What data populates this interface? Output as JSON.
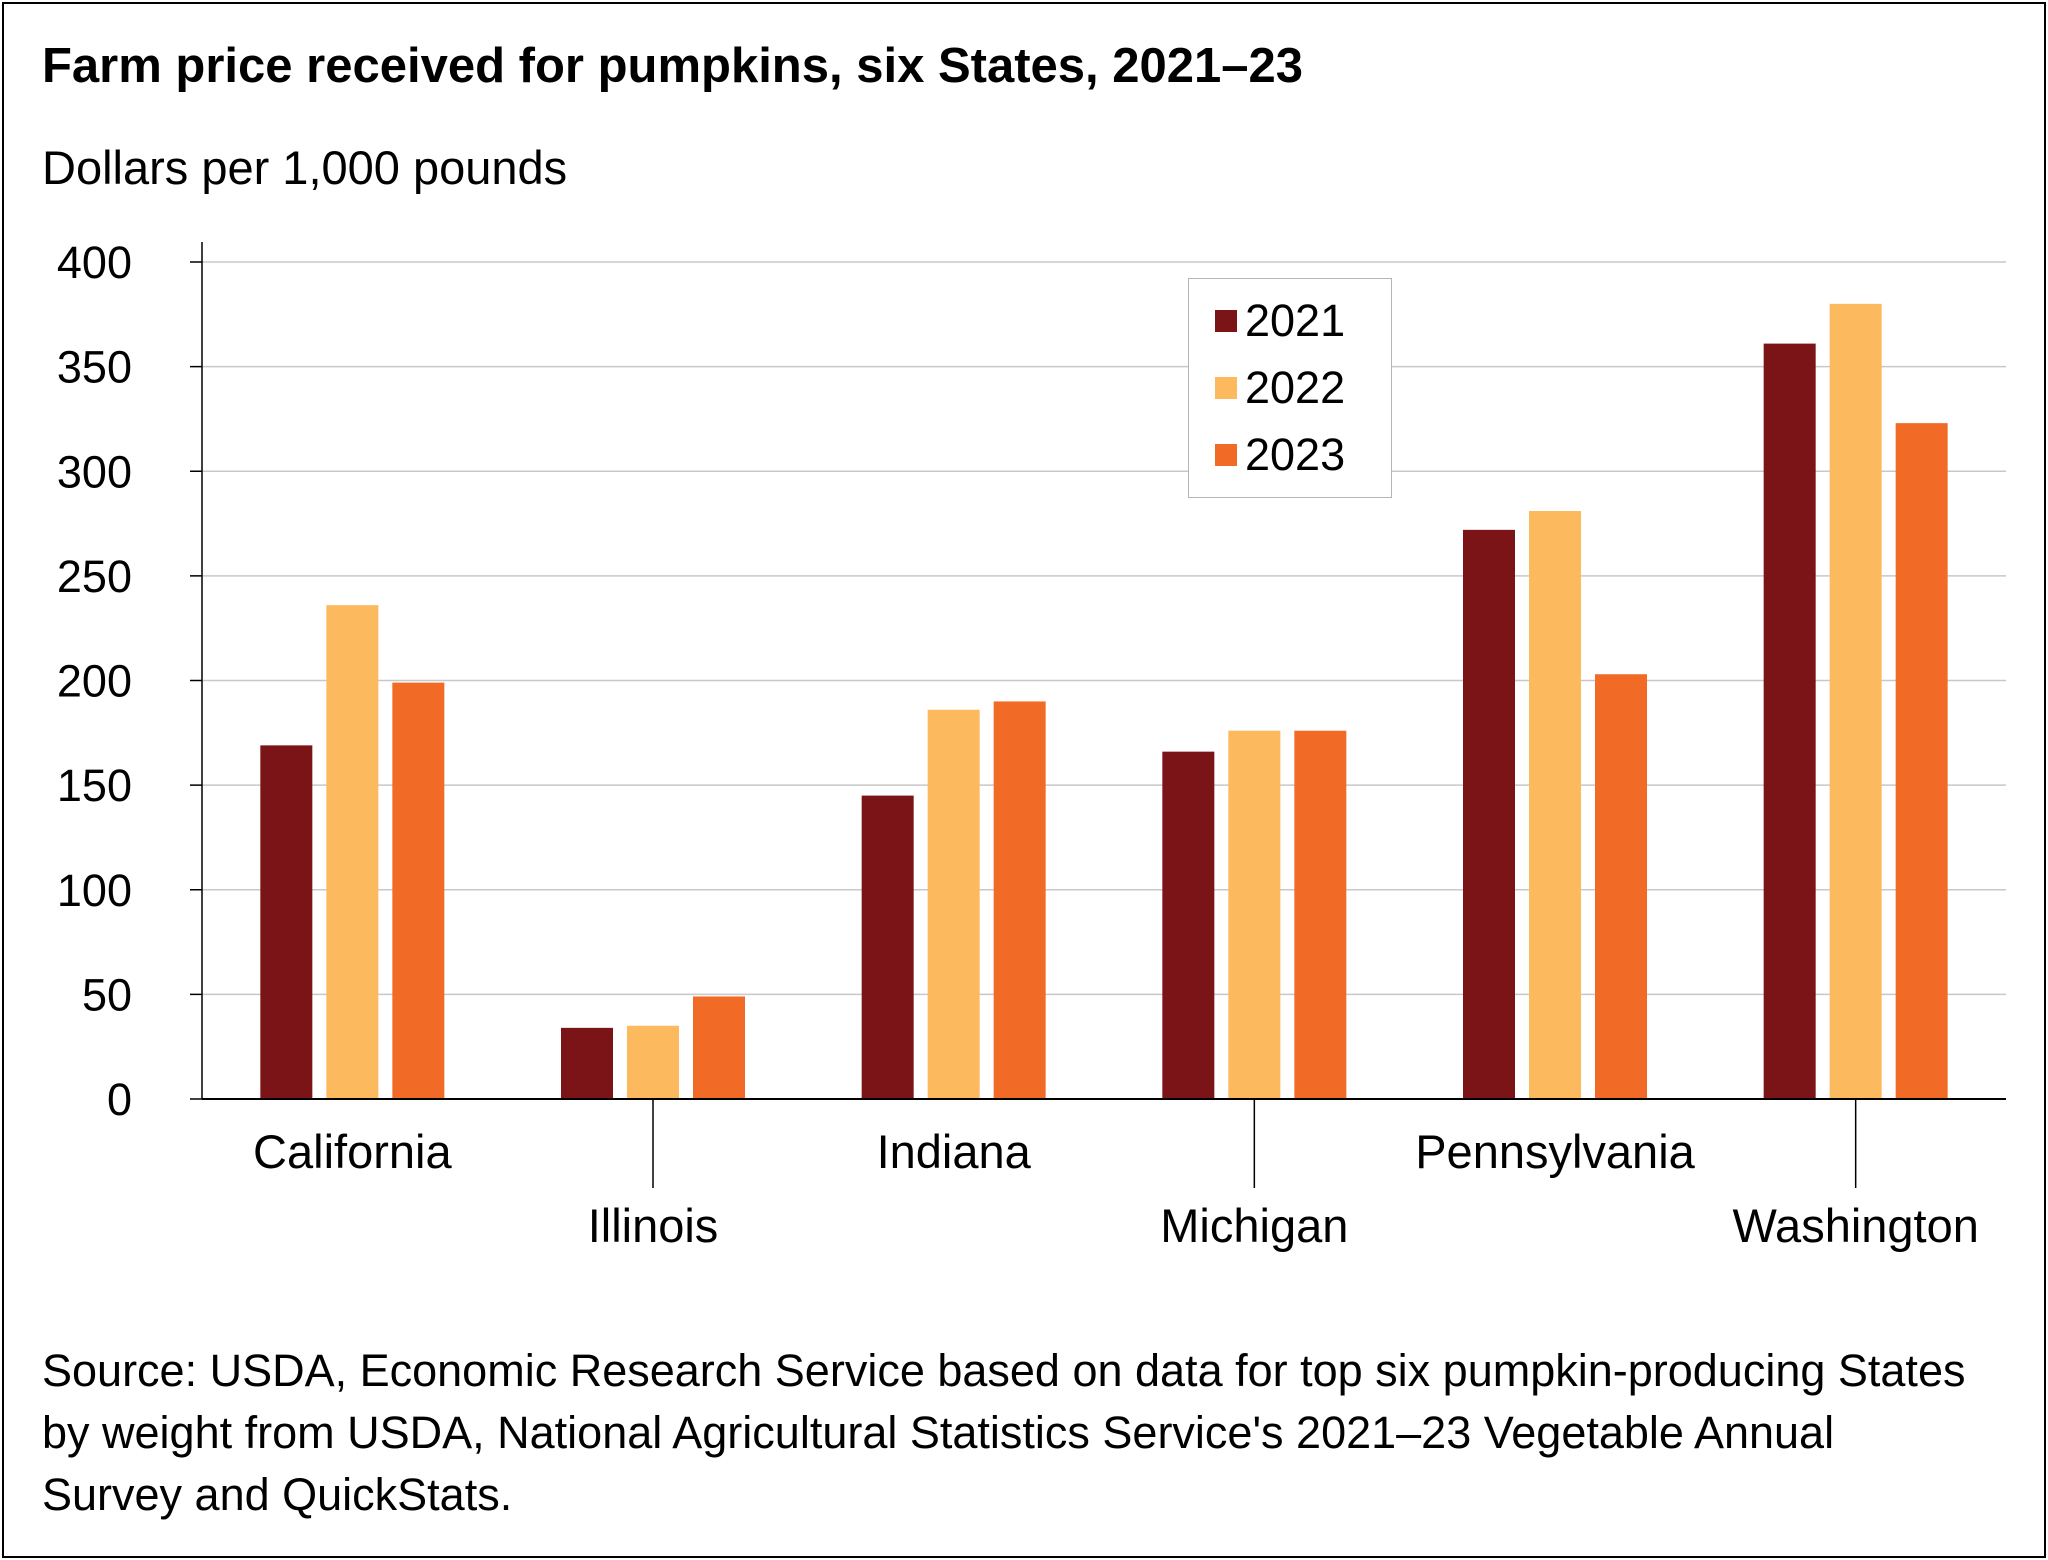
{
  "chart_data": {
    "type": "bar",
    "title": "Farm price received for pumpkins, six States, 2021–23",
    "ylabel": "Dollars per 1,000 pounds",
    "xlabel": "",
    "categories": [
      "California",
      "Illinois",
      "Indiana",
      "Michigan",
      "Pennsylvania",
      "Washington"
    ],
    "series": [
      {
        "name": "2021",
        "color": "#7b1416",
        "values": [
          169,
          34,
          145,
          166,
          272,
          361
        ]
      },
      {
        "name": "2022",
        "color": "#fdb95e",
        "values": [
          236,
          35,
          186,
          176,
          281,
          380
        ]
      },
      {
        "name": "2023",
        "color": "#f26b26",
        "values": [
          199,
          49,
          190,
          176,
          203,
          323
        ]
      }
    ],
    "ylim": [
      0,
      400
    ],
    "yticks": [
      "0",
      "50",
      "100",
      "150",
      "200",
      "250",
      "300",
      "350",
      "400"
    ],
    "grid": true,
    "legend_position": "top-center"
  },
  "source": "Source: USDA, Economic Research Service based on data for top six pumpkin-producing States by weight from USDA, National Agricultural Statistics Service's 2021–23 Vegetable Annual Survey and QuickStats."
}
